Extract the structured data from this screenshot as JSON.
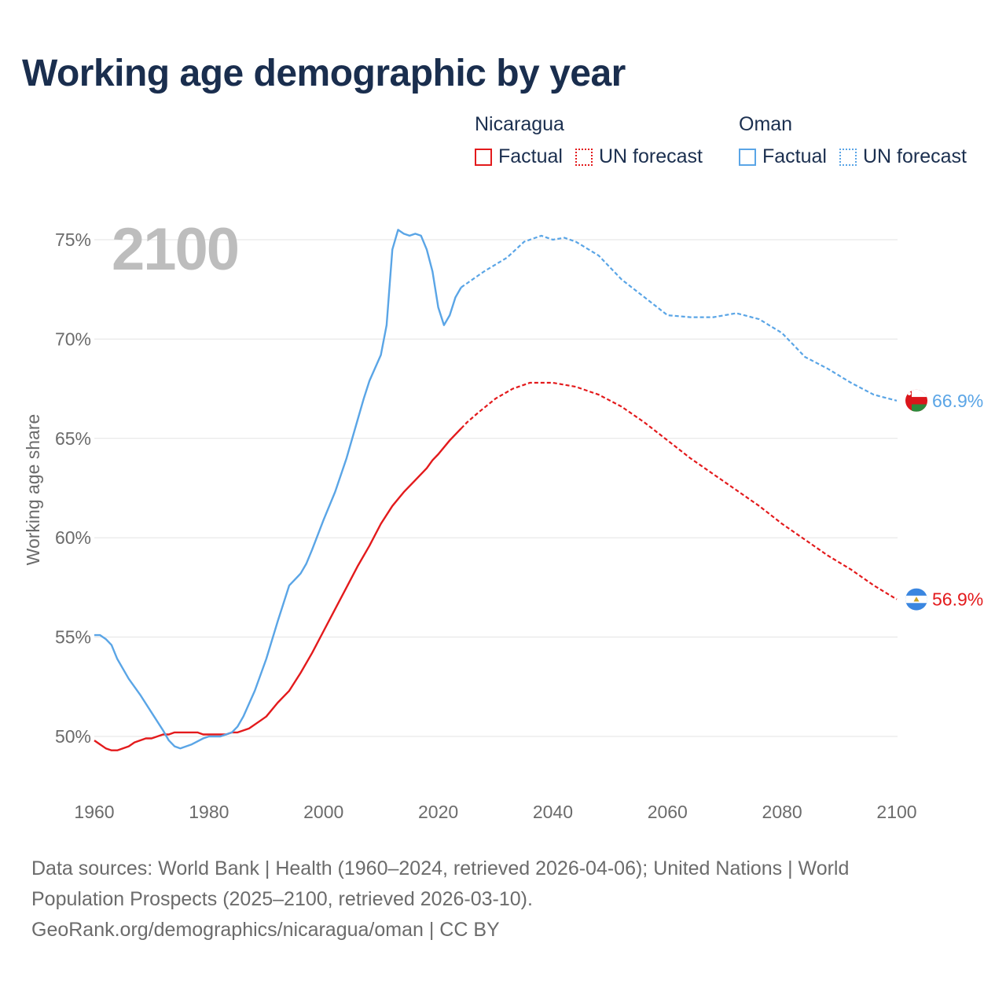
{
  "title": "Working age demographic by year",
  "legend": {
    "groups": [
      {
        "name": "Nicaragua",
        "color": "#e31a1c",
        "factual_label": "Factual",
        "forecast_label": "UN forecast"
      },
      {
        "name": "Oman",
        "color": "#5aa5e6",
        "factual_label": "Factual",
        "forecast_label": "UN forecast"
      }
    ]
  },
  "year_label": "2100",
  "footer": {
    "line1": "Data sources: World Bank | Health (1960–2024, retrieved 2026-04-06); United Nations | World",
    "line2": "Population Prospects (2025–2100, retrieved 2026-03-10).",
    "line3": "GeoRank.org/demographics/nicaragua/oman | CC BY"
  },
  "chart_data": {
    "type": "line",
    "title": "Working age demographic by year",
    "xlabel": "",
    "ylabel": "Working age share",
    "xlim": [
      1960,
      2100
    ],
    "ylim": [
      48,
      76
    ],
    "x_ticks": [
      1960,
      1980,
      2000,
      2020,
      2040,
      2060,
      2080,
      2100
    ],
    "x_tick_labels": [
      "1960",
      "1980",
      "2000",
      "2020",
      "2040",
      "2060",
      "2080",
      "2100"
    ],
    "y_ticks": [
      50,
      55,
      60,
      65,
      70,
      75
    ],
    "y_tick_labels": [
      "50%",
      "55%",
      "60%",
      "65%",
      "70%",
      "75%"
    ],
    "grid": true,
    "factual_end_year": 2024,
    "series": [
      {
        "name": "Nicaragua",
        "color": "#e31a1c",
        "end_label": "56.9%",
        "points": [
          [
            1960,
            49.8
          ],
          [
            1962,
            49.4
          ],
          [
            1963,
            49.3
          ],
          [
            1964,
            49.3
          ],
          [
            1966,
            49.5
          ],
          [
            1967,
            49.7
          ],
          [
            1969,
            49.9
          ],
          [
            1970,
            49.9
          ],
          [
            1972,
            50.1
          ],
          [
            1973,
            50.1
          ],
          [
            1974,
            50.2
          ],
          [
            1978,
            50.2
          ],
          [
            1979,
            50.1
          ],
          [
            1983,
            50.1
          ],
          [
            1984,
            50.2
          ],
          [
            1985,
            50.2
          ],
          [
            1987,
            50.4
          ],
          [
            1989,
            50.8
          ],
          [
            1990,
            51.0
          ],
          [
            1992,
            51.7
          ],
          [
            1994,
            52.3
          ],
          [
            1996,
            53.2
          ],
          [
            1998,
            54.2
          ],
          [
            2000,
            55.3
          ],
          [
            2002,
            56.4
          ],
          [
            2004,
            57.5
          ],
          [
            2006,
            58.6
          ],
          [
            2008,
            59.6
          ],
          [
            2010,
            60.7
          ],
          [
            2012,
            61.6
          ],
          [
            2014,
            62.3
          ],
          [
            2016,
            62.9
          ],
          [
            2018,
            63.5
          ],
          [
            2019,
            63.9
          ],
          [
            2020,
            64.2
          ],
          [
            2022,
            64.9
          ],
          [
            2024,
            65.5
          ],
          [
            2025,
            65.8
          ],
          [
            2027,
            66.3
          ],
          [
            2030,
            67.0
          ],
          [
            2033,
            67.5
          ],
          [
            2036,
            67.8
          ],
          [
            2040,
            67.8
          ],
          [
            2044,
            67.6
          ],
          [
            2048,
            67.2
          ],
          [
            2052,
            66.6
          ],
          [
            2056,
            65.8
          ],
          [
            2060,
            64.9
          ],
          [
            2064,
            64.0
          ],
          [
            2068,
            63.2
          ],
          [
            2072,
            62.4
          ],
          [
            2076,
            61.6
          ],
          [
            2080,
            60.7
          ],
          [
            2084,
            59.9
          ],
          [
            2088,
            59.1
          ],
          [
            2092,
            58.4
          ],
          [
            2096,
            57.6
          ],
          [
            2100,
            56.9
          ]
        ]
      },
      {
        "name": "Oman",
        "color": "#5aa5e6",
        "end_label": "66.9%",
        "points": [
          [
            1960,
            55.1
          ],
          [
            1961,
            55.1
          ],
          [
            1962,
            54.9
          ],
          [
            1963,
            54.6
          ],
          [
            1964,
            53.9
          ],
          [
            1966,
            52.9
          ],
          [
            1968,
            52.1
          ],
          [
            1970,
            51.2
          ],
          [
            1972,
            50.3
          ],
          [
            1973,
            49.8
          ],
          [
            1974,
            49.5
          ],
          [
            1975,
            49.4
          ],
          [
            1977,
            49.6
          ],
          [
            1979,
            49.9
          ],
          [
            1980,
            50.0
          ],
          [
            1982,
            50.0
          ],
          [
            1984,
            50.2
          ],
          [
            1985,
            50.5
          ],
          [
            1986,
            51.0
          ],
          [
            1988,
            52.3
          ],
          [
            1990,
            53.9
          ],
          [
            1992,
            55.8
          ],
          [
            1994,
            57.6
          ],
          [
            1995,
            57.9
          ],
          [
            1996,
            58.2
          ],
          [
            1997,
            58.7
          ],
          [
            1998,
            59.4
          ],
          [
            2000,
            60.9
          ],
          [
            2002,
            62.3
          ],
          [
            2004,
            64.0
          ],
          [
            2006,
            66.0
          ],
          [
            2007,
            67.0
          ],
          [
            2008,
            67.9
          ],
          [
            2010,
            69.2
          ],
          [
            2011,
            70.7
          ],
          [
            2012,
            74.5
          ],
          [
            2013,
            75.5
          ],
          [
            2014,
            75.3
          ],
          [
            2015,
            75.2
          ],
          [
            2016,
            75.3
          ],
          [
            2017,
            75.2
          ],
          [
            2018,
            74.5
          ],
          [
            2019,
            73.4
          ],
          [
            2020,
            71.6
          ],
          [
            2021,
            70.7
          ],
          [
            2022,
            71.2
          ],
          [
            2023,
            72.1
          ],
          [
            2024,
            72.6
          ],
          [
            2025,
            72.8
          ],
          [
            2028,
            73.4
          ],
          [
            2032,
            74.1
          ],
          [
            2035,
            74.9
          ],
          [
            2038,
            75.2
          ],
          [
            2040,
            75.0
          ],
          [
            2042,
            75.1
          ],
          [
            2044,
            74.9
          ],
          [
            2048,
            74.2
          ],
          [
            2052,
            73.0
          ],
          [
            2056,
            72.1
          ],
          [
            2060,
            71.2
          ],
          [
            2064,
            71.1
          ],
          [
            2068,
            71.1
          ],
          [
            2072,
            71.3
          ],
          [
            2076,
            71.0
          ],
          [
            2080,
            70.3
          ],
          [
            2084,
            69.1
          ],
          [
            2088,
            68.5
          ],
          [
            2092,
            67.8
          ],
          [
            2096,
            67.2
          ],
          [
            2100,
            66.9
          ]
        ]
      }
    ]
  }
}
